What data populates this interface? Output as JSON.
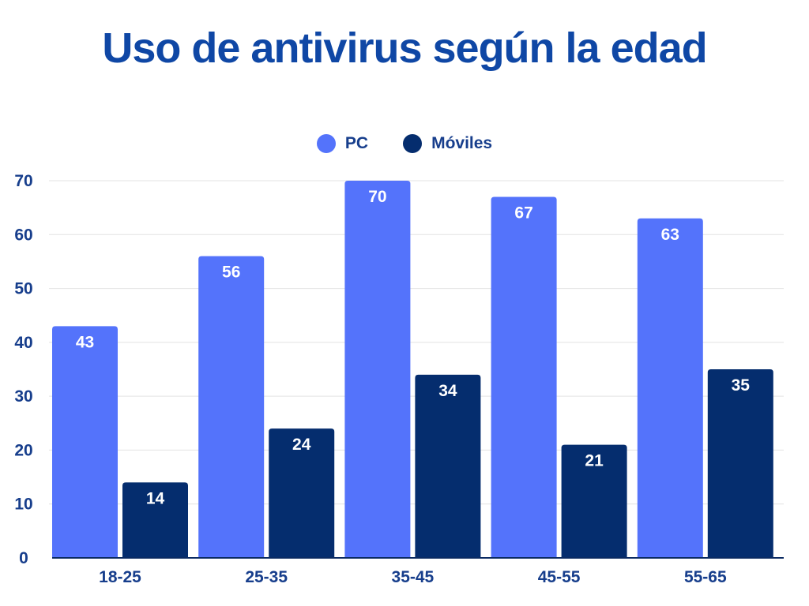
{
  "chart_data": {
    "type": "bar",
    "title": "Uso de antivirus según la edad",
    "categories": [
      "18-25",
      "25-35",
      "35-45",
      "45-55",
      "55-65"
    ],
    "series": [
      {
        "name": "PC",
        "values": [
          43,
          56,
          70,
          67,
          63
        ],
        "color": "#5473fb"
      },
      {
        "name": "Móviles",
        "values": [
          14,
          24,
          34,
          21,
          35
        ],
        "color": "#052d6e"
      }
    ],
    "yticks": [
      0,
      10,
      20,
      30,
      40,
      50,
      60,
      70
    ],
    "ylim": [
      0,
      70
    ],
    "grid": true,
    "legend_position": "top-center",
    "xlabel": "",
    "ylabel": ""
  },
  "colors": {
    "title": "#0f47a5",
    "axis_text": "#173e8c",
    "gridline": "#e3e3e3",
    "axis_line": "#0a2a62"
  }
}
